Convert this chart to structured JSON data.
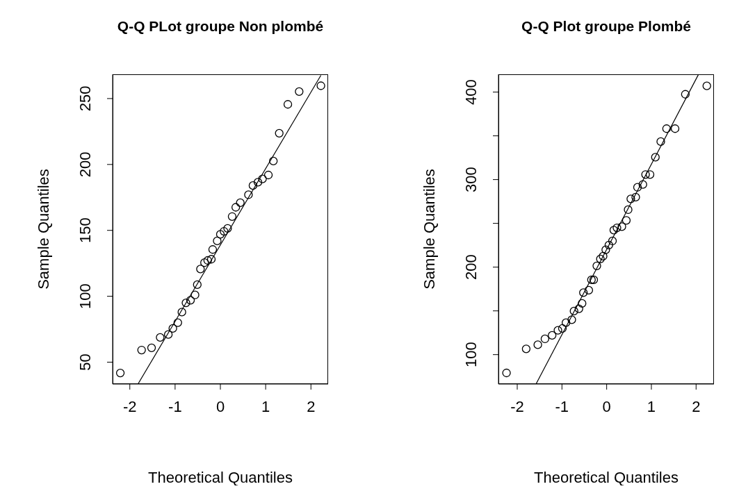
{
  "chart_data": [
    {
      "type": "scatter",
      "title": "Q-Q PLot groupe Non plombé",
      "xlabel": "Theoretical Quantiles",
      "ylabel": "Sample Quantiles",
      "xlim": [
        -2.38,
        2.38
      ],
      "xticks": [
        -2,
        -1,
        0,
        1,
        2
      ],
      "ylim": [
        33.4,
        268.4
      ],
      "yticks": [
        50,
        100,
        150,
        200,
        250
      ],
      "series": [
        {
          "color": "#000000",
          "marker": "circle",
          "x": [
            -2.21,
            -1.74,
            -1.52,
            -1.33,
            -1.15,
            -1.05,
            -0.94,
            -0.85,
            -0.76,
            -0.66,
            -0.56,
            -0.51,
            -0.44,
            -0.35,
            -0.28,
            -0.2,
            -0.17,
            -0.07,
            0.0,
            0.08,
            0.16,
            0.26,
            0.34,
            0.44,
            0.62,
            0.72,
            0.83,
            0.93,
            1.06,
            1.17,
            1.3,
            1.49,
            1.74,
            2.22
          ],
          "values": [
            41.8,
            59.2,
            60.9,
            68.8,
            71,
            75.6,
            80,
            88,
            95,
            97,
            101,
            108.8,
            120.7,
            125.5,
            127.2,
            128.1,
            135.5,
            142,
            147,
            149.3,
            151.5,
            160.5,
            167.5,
            171,
            177,
            184,
            186.5,
            189,
            192,
            202.6,
            223.7,
            245.6,
            255.3,
            259.7
          ]
        },
        {
          "type": "line",
          "color": "#000000",
          "x": [
            -1.82,
            2.22
          ],
          "values": [
            33.4,
            267.6
          ]
        }
      ]
    },
    {
      "type": "scatter",
      "title": "Q-Q Plot groupe Plombé",
      "xlabel": "Theoretical Quantiles",
      "ylabel": "Sample Quantiles",
      "xlim": [
        -2.42,
        2.4
      ],
      "xticks": [
        -2,
        -1,
        0,
        1,
        2
      ],
      "ylim": [
        66.4,
        420.3
      ],
      "yticks": [
        100,
        {
          "value": 150,
          "label": null
        },
        200,
        {
          "value": 250,
          "label": null
        },
        300,
        {
          "value": 350,
          "label": null
        },
        400
      ],
      "series": [
        {
          "color": "#000000",
          "marker": "circle",
          "x": [
            -2.24,
            -1.8,
            -1.54,
            -1.38,
            -1.22,
            -1.09,
            -0.99,
            -0.91,
            -0.78,
            -0.73,
            -0.62,
            -0.55,
            -0.52,
            -0.4,
            -0.34,
            -0.29,
            -0.22,
            -0.14,
            -0.08,
            -0.02,
            0.05,
            0.13,
            0.16,
            0.23,
            0.34,
            0.44,
            0.48,
            0.54,
            0.65,
            0.69,
            0.81,
            0.87,
            0.97,
            1.09,
            1.21,
            1.34,
            1.53,
            1.76,
            2.24
          ],
          "values": [
            79.1,
            106.6,
            111.3,
            118,
            122,
            127.8,
            129.9,
            136.5,
            139.9,
            149.8,
            152.4,
            158.5,
            170.9,
            173.6,
            185.5,
            185.5,
            201.4,
            209.3,
            212.5,
            219.8,
            225.2,
            229.9,
            242.3,
            244.9,
            246.3,
            253.4,
            265.6,
            278,
            279.9,
            291.2,
            294.4,
            305.8,
            305.8,
            325.6,
            343.4,
            358.2,
            358.2,
            397.5,
            407.1
          ]
        },
        {
          "type": "line",
          "color": "#000000",
          "x": [
            -1.58,
            2.05
          ],
          "values": [
            66.4,
            419.8
          ]
        }
      ]
    }
  ]
}
